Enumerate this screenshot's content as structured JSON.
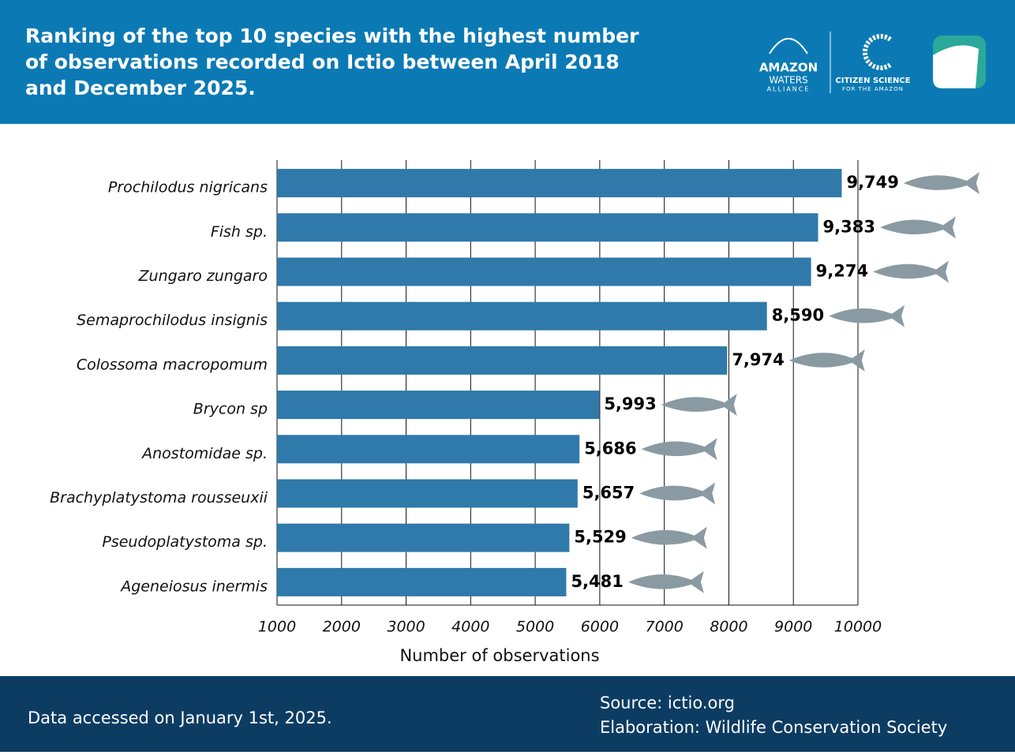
{
  "header": {
    "title_lines": [
      "Ranking of the top 10 species with the highest number",
      "of observations recorded on Ictio between April 2018",
      "and December 2025."
    ],
    "logos": {
      "alliance": [
        "AMAZON",
        "WATERS",
        "ALLIANCE"
      ],
      "citizen": [
        "CITIZEN SCIENCE",
        "FOR THE AMAZON"
      ]
    }
  },
  "chart_data": {
    "type": "bar",
    "orientation": "horizontal",
    "color": "#2f7aab",
    "categories": [
      "Prochilodus nigricans",
      "Fish sp.",
      "Zungaro zungaro",
      "Semaprochilodus insignis",
      "Colossoma macropomum",
      "Brycon sp",
      "Anostomidae sp.",
      "Brachyplatystoma rousseuxii",
      "Pseudoplatystoma sp.",
      "Ageneiosus inermis"
    ],
    "values": [
      9749,
      9383,
      9274,
      8590,
      7974,
      5993,
      5686,
      5657,
      5529,
      5481
    ],
    "value_labels": [
      "9,749",
      "9,383",
      "9,274",
      "8,590",
      "7,974",
      "5,993",
      "5,686",
      "5,657",
      "5,529",
      "5,481"
    ],
    "xlim": [
      1000,
      10000
    ],
    "xticks": [
      1000,
      2000,
      3000,
      4000,
      5000,
      6000,
      7000,
      8000,
      9000,
      10000
    ],
    "x_label": "Number of observations",
    "grid": true
  },
  "footer": {
    "note": "Data accessed on January 1st, 2025.",
    "source": "Source: ictio.org",
    "elaboration": "Elaboration: Wildlife Conservation Society"
  }
}
